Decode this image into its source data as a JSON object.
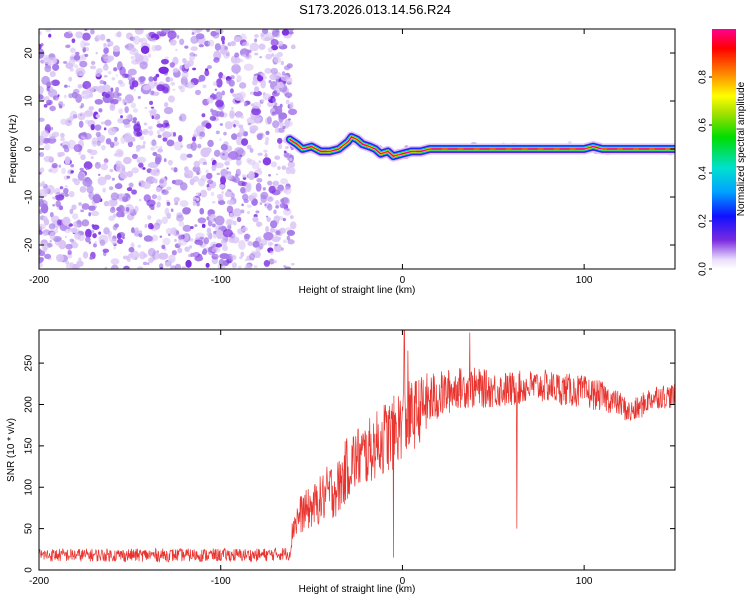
{
  "title": "S173.2026.013.14.56.R24",
  "colors": {
    "speckle_light": "#d9c4f5",
    "speckle_mid": "#a57be8",
    "speckle_dark": "#7a2be0",
    "snr_line": "#e8332e"
  },
  "chart_data": [
    {
      "type": "heatmap",
      "title": "S173.2026.013.14.56.R24",
      "xlabel": "Height of straight line (km)",
      "ylabel": "Frequency (Hz)",
      "xlim": [
        -200,
        150
      ],
      "ylim": [
        -25,
        25
      ],
      "x_ticks": [
        -200,
        -100,
        0,
        100
      ],
      "y_ticks": [
        -20,
        -10,
        0,
        10,
        20
      ],
      "noise_region_x": [
        -200,
        -60
      ],
      "ridge": {
        "x": [
          -62,
          -58,
          -55,
          -50,
          -45,
          -40,
          -35,
          -30,
          -28,
          -25,
          -22,
          -18,
          -15,
          -12,
          -8,
          -5,
          0,
          5,
          10,
          15,
          20,
          30,
          50,
          80,
          100,
          105,
          110,
          130,
          150
        ],
        "freq": [
          2,
          1,
          0,
          0.5,
          -0.5,
          -0.5,
          0,
          1.5,
          2.5,
          2,
          1,
          0.5,
          0,
          -1,
          -0.5,
          -1.5,
          -1,
          -0.5,
          -0.5,
          0,
          0,
          0,
          0,
          0,
          0,
          0.5,
          0,
          0,
          0
        ]
      },
      "colorbar": {
        "label": "Normalized spectral amplitude",
        "range": [
          0,
          0.95
        ],
        "ticks": [
          0.0,
          0.2,
          0.4,
          0.6,
          0.8
        ]
      },
      "grid": false
    },
    {
      "type": "line",
      "xlabel": "Height of straight line (km)",
      "ylabel": "SNR (10 * v/v)",
      "xlim": [
        -200,
        150
      ],
      "ylim": [
        0,
        290
      ],
      "x_ticks": [
        -200,
        -100,
        0,
        100
      ],
      "y_ticks": [
        0,
        50,
        100,
        150,
        200,
        250
      ],
      "series": [
        {
          "x": [
            -200,
            -180,
            -160,
            -140,
            -120,
            -100,
            -80,
            -62,
            -60,
            -55,
            -50,
            -45,
            -40,
            -35,
            -30,
            -25,
            -20,
            -15,
            -10,
            -5,
            0,
            5,
            10,
            15,
            20,
            25,
            30,
            40,
            50,
            60,
            70,
            80,
            90,
            100,
            110,
            120,
            125,
            130,
            135,
            140,
            150
          ],
          "y": [
            18,
            18,
            18,
            18,
            18,
            18,
            18,
            20,
            55,
            70,
            75,
            85,
            95,
            100,
            125,
            135,
            140,
            150,
            160,
            165,
            180,
            185,
            195,
            205,
            210,
            215,
            220,
            220,
            218,
            218,
            222,
            222,
            218,
            215,
            210,
            200,
            190,
            195,
            205,
            210,
            210
          ],
          "noise": [
            8,
            8,
            8,
            8,
            8,
            8,
            8,
            8,
            20,
            25,
            25,
            30,
            35,
            35,
            40,
            40,
            40,
            40,
            45,
            45,
            45,
            45,
            40,
            35,
            30,
            28,
            25,
            25,
            22,
            22,
            20,
            20,
            20,
            20,
            18,
            15,
            15,
            15,
            15,
            15,
            15
          ]
        }
      ],
      "spikes": [
        {
          "x": 1,
          "y": 290
        },
        {
          "x": 3,
          "y": 265
        },
        {
          "x": 37,
          "y": 287
        },
        {
          "x": 63,
          "y": 50
        },
        {
          "x": -5,
          "y": 15
        }
      ],
      "grid": false
    }
  ]
}
